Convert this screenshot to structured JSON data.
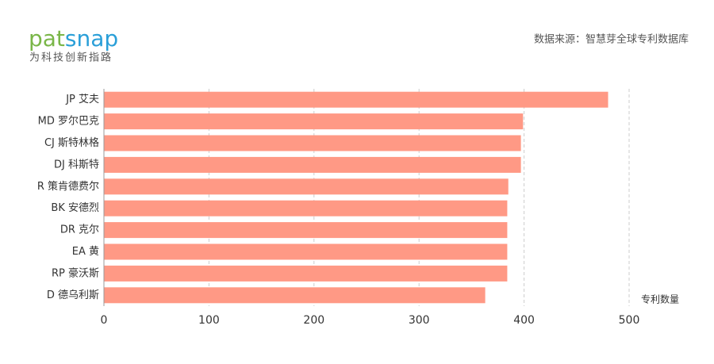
{
  "header": {
    "logo_part1": "pat",
    "logo_part2": "snap",
    "tagline": "为科技创新指路",
    "source": "数据来源：智慧芽全球专利数据库"
  },
  "chart_data": {
    "type": "hbar",
    "categories": [
      "JP 艾夫",
      "MD 罗尔巴克",
      "CJ 斯特林格",
      "DJ 科斯特",
      "R 策肯德费尔",
      "BK 安德烈",
      "DR 克尔",
      "EA 黄",
      "RP 豪沃斯",
      "D 德乌利斯"
    ],
    "values": [
      480,
      399,
      397,
      397,
      385,
      384,
      384,
      384,
      384,
      363
    ],
    "color": "#ff9985",
    "xlim": [
      0,
      500
    ],
    "xticks": [
      0,
      100,
      200,
      300,
      400,
      500
    ],
    "x_label": "专利数量",
    "grid": true
  }
}
